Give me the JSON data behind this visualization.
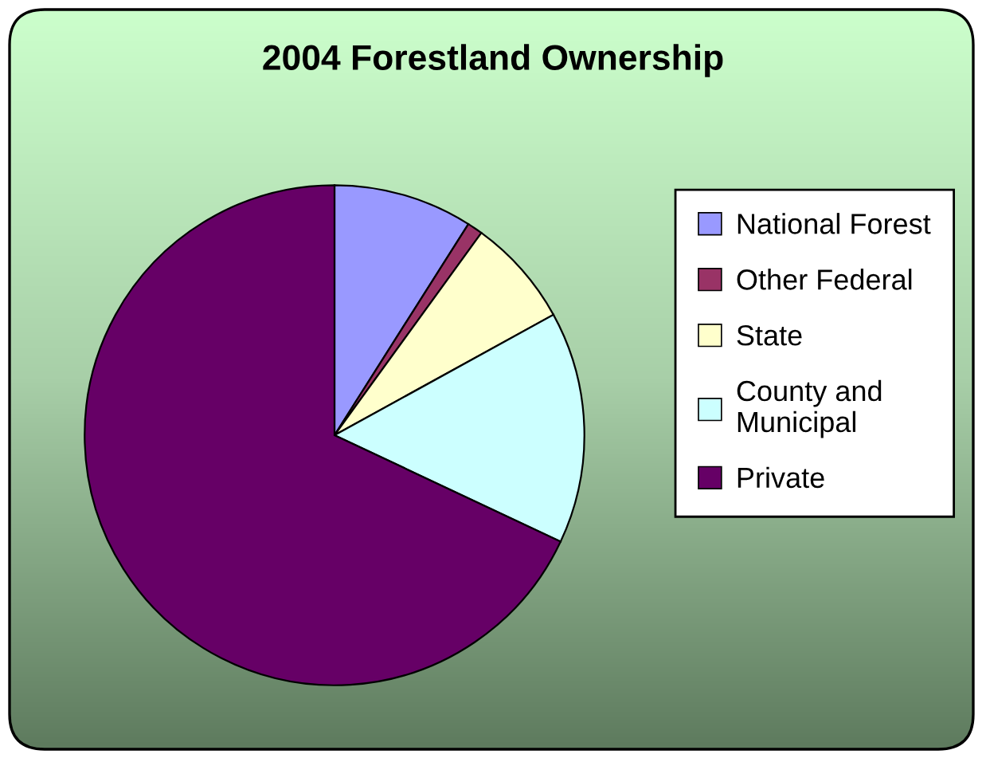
{
  "chart_data": {
    "type": "pie",
    "title": "2004 Forestland Ownership",
    "categories": [
      "National Forest",
      "Other Federal",
      "State",
      "County and\nMunicipal",
      "Private"
    ],
    "values": [
      9,
      1,
      7,
      15,
      68
    ],
    "colors": [
      "#9999ff",
      "#993366",
      "#ffffcc",
      "#ccffff",
      "#660066"
    ],
    "legend": "right"
  }
}
